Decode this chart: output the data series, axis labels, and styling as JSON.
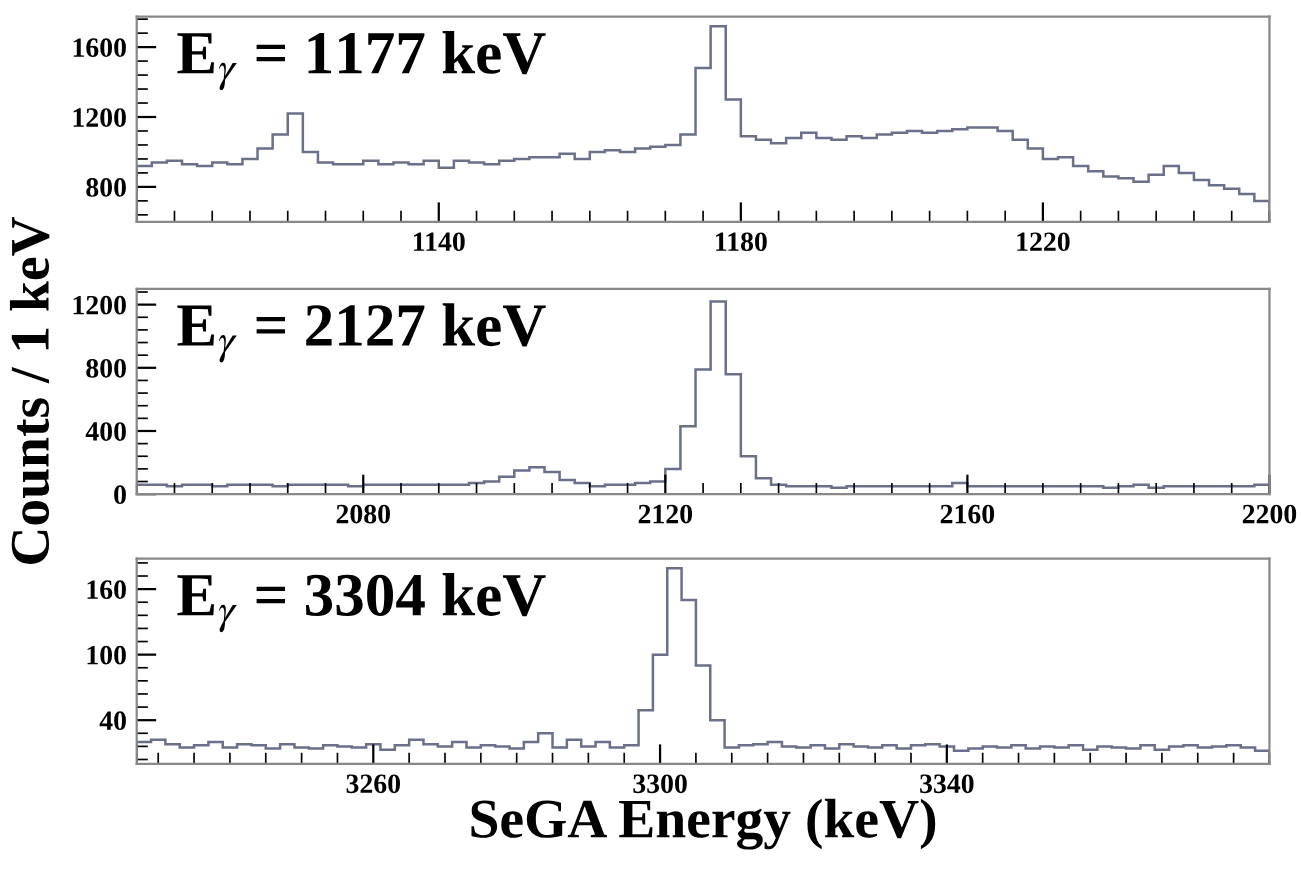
{
  "chart_data": [
    {
      "type": "histogram",
      "annotations": [
        "E$_{γ}$ = 1177 keV"
      ],
      "color": "#6a6f8a",
      "bins": [
        1100,
        1102,
        1104,
        1106,
        1108,
        1110,
        1112,
        1114,
        1116,
        1118,
        1120,
        1122,
        1124,
        1126,
        1128,
        1130,
        1132,
        1134,
        1136,
        1138,
        1140,
        1142,
        1144,
        1146,
        1148,
        1150,
        1152,
        1154,
        1156,
        1158,
        1160,
        1162,
        1164,
        1166,
        1168,
        1170,
        1172,
        1174,
        1176,
        1178,
        1180,
        1182,
        1184,
        1186,
        1188,
        1190,
        1192,
        1194,
        1196,
        1198,
        1200,
        1202,
        1204,
        1206,
        1208,
        1210,
        1212,
        1214,
        1216,
        1218,
        1220,
        1222,
        1224,
        1226,
        1228,
        1230,
        1232,
        1234,
        1236,
        1238,
        1240,
        1242,
        1244,
        1246,
        1248,
        1250
      ],
      "values": [
        920,
        940,
        950,
        930,
        920,
        940,
        930,
        960,
        1020,
        1100,
        1220,
        1000,
        940,
        930,
        930,
        950,
        930,
        940,
        930,
        950,
        910,
        950,
        940,
        930,
        950,
        960,
        970,
        970,
        990,
        960,
        1000,
        1010,
        1000,
        1020,
        1030,
        1040,
        1100,
        1480,
        1720,
        1300,
        1090,
        1070,
        1050,
        1080,
        1110,
        1080,
        1070,
        1090,
        1080,
        1100,
        1110,
        1120,
        1110,
        1120,
        1130,
        1140,
        1140,
        1120,
        1070,
        1020,
        960,
        970,
        920,
        890,
        860,
        850,
        830,
        870,
        920,
        880,
        840,
        810,
        790,
        760,
        720
      ],
      "xlim": [
        1100,
        1250
      ],
      "ylim": [
        600,
        1775
      ],
      "xticks": [
        1140,
        1180,
        1220
      ],
      "yticks": [
        800,
        1200,
        1600
      ]
    },
    {
      "type": "histogram",
      "annotations": [
        "E$_{γ}$ = 2127 keV"
      ],
      "ylabel": "Counts / 1 keV",
      "color": "#6a6f8a",
      "bins": [
        2050,
        2052,
        2054,
        2056,
        2058,
        2060,
        2062,
        2064,
        2066,
        2068,
        2070,
        2072,
        2074,
        2076,
        2078,
        2080,
        2082,
        2084,
        2086,
        2088,
        2090,
        2092,
        2094,
        2096,
        2098,
        2100,
        2102,
        2104,
        2106,
        2108,
        2110,
        2112,
        2114,
        2116,
        2118,
        2120,
        2122,
        2124,
        2126,
        2128,
        2130,
        2132,
        2134,
        2136,
        2138,
        2140,
        2142,
        2144,
        2146,
        2148,
        2150,
        2152,
        2154,
        2156,
        2158,
        2160,
        2162,
        2164,
        2166,
        2168,
        2170,
        2172,
        2174,
        2176,
        2178,
        2180,
        2182,
        2184,
        2186,
        2188,
        2190,
        2192,
        2194,
        2196,
        2198,
        2200
      ],
      "values": [
        60,
        60,
        50,
        60,
        60,
        50,
        60,
        60,
        60,
        50,
        60,
        60,
        60,
        60,
        50,
        60,
        60,
        60,
        60,
        60,
        60,
        60,
        70,
        80,
        110,
        150,
        170,
        140,
        90,
        70,
        50,
        60,
        60,
        70,
        80,
        160,
        430,
        790,
        1220,
        760,
        240,
        100,
        60,
        50,
        50,
        50,
        40,
        50,
        50,
        50,
        50,
        50,
        50,
        50,
        70,
        50,
        50,
        50,
        50,
        50,
        50,
        50,
        50,
        50,
        40,
        50,
        60,
        40,
        50,
        50,
        50,
        50,
        50,
        50,
        60
      ],
      "xlim": [
        2050,
        2200
      ],
      "ylim": [
        0,
        1300
      ],
      "xticks": [
        2080,
        2120,
        2160,
        2200
      ],
      "yticks": [
        0,
        400,
        800,
        1200
      ]
    },
    {
      "type": "histogram",
      "annotations": [
        "E$_{γ}$ = 3304 keV"
      ],
      "xlabel": "SeGA Energy (keV)",
      "color": "#6a6f8a",
      "bins": [
        3227,
        3229,
        3231,
        3233,
        3235,
        3237,
        3239,
        3241,
        3243,
        3245,
        3247,
        3249,
        3251,
        3253,
        3255,
        3257,
        3259,
        3261,
        3263,
        3265,
        3267,
        3269,
        3271,
        3273,
        3275,
        3277,
        3279,
        3281,
        3283,
        3285,
        3287,
        3289,
        3291,
        3293,
        3295,
        3297,
        3299,
        3301,
        3303,
        3305,
        3307,
        3309,
        3311,
        3313,
        3315,
        3317,
        3319,
        3321,
        3323,
        3325,
        3327,
        3329,
        3331,
        3333,
        3335,
        3337,
        3339,
        3341,
        3343,
        3345,
        3347,
        3349,
        3351,
        3353,
        3355,
        3357,
        3359,
        3361,
        3363,
        3365,
        3367,
        3369,
        3371,
        3373,
        3375,
        3377,
        3379,
        3381,
        3383,
        3385
      ],
      "values": [
        20,
        22,
        18,
        15,
        17,
        20,
        15,
        18,
        17,
        14,
        18,
        15,
        14,
        17,
        16,
        15,
        18,
        13,
        17,
        22,
        18,
        16,
        20,
        15,
        17,
        16,
        14,
        20,
        28,
        15,
        22,
        16,
        20,
        15,
        17,
        49,
        100,
        179,
        150,
        90,
        40,
        15,
        17,
        18,
        20,
        16,
        15,
        17,
        14,
        18,
        16,
        15,
        17,
        14,
        17,
        18,
        16,
        12,
        14,
        16,
        15,
        17,
        14,
        16,
        15,
        17,
        13,
        16,
        15,
        14,
        17,
        13,
        16,
        17,
        15,
        16,
        17,
        15,
        12
      ],
      "xlim": [
        3227,
        3385
      ],
      "ylim": [
        0,
        188
      ],
      "xticks": [
        3260,
        3300,
        3340
      ],
      "yticks": [
        40,
        100,
        160
      ]
    }
  ]
}
